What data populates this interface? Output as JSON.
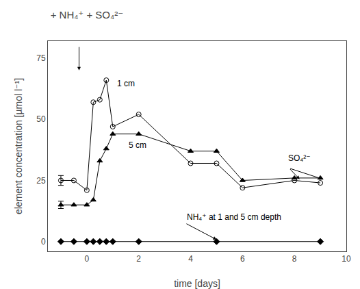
{
  "chart_data": {
    "type": "line",
    "title": "+ NH₄⁺ + SO₄²⁻",
    "xlabel": "time [days]",
    "ylabel": "element concentration [µmol l⁻¹]",
    "xlim": [
      -1.5,
      10
    ],
    "ylim": [
      -4,
      82
    ],
    "xticks": [
      0,
      2,
      4,
      6,
      8,
      10
    ],
    "yticks": [
      0,
      25,
      50,
      75
    ],
    "grid": false,
    "series": [
      {
        "x": [
          -1.0,
          -0.5,
          0.0,
          0.25,
          0.5,
          0.75,
          1.0,
          2.0,
          4.0,
          5.0,
          6.0,
          8.0,
          9.0
        ],
        "values": [
          25.0,
          25.0,
          21.0,
          57.0,
          58.0,
          66.0,
          47.0,
          52.0,
          32.0,
          32.0,
          22.0,
          25.0,
          24.0
        ],
        "errors": [
          2.0,
          0,
          0,
          0,
          0,
          0,
          0,
          0,
          0,
          0,
          0,
          0,
          0
        ],
        "color": "#000000",
        "marker": "circle-open",
        "line_style": "solid"
      },
      {
        "x": [
          -1.0,
          -0.5,
          0.0,
          0.25,
          0.5,
          0.75,
          1.0,
          2.0,
          4.0,
          5.0,
          6.0,
          8.0,
          9.0
        ],
        "values": [
          15.0,
          15.0,
          15.0,
          17.0,
          33.0,
          38.0,
          44.0,
          44.0,
          37.0,
          37.0,
          25.0,
          26.0,
          26.0
        ],
        "errors": [
          1.5,
          0,
          0,
          0,
          0,
          0,
          0,
          0,
          0,
          0,
          0,
          0,
          0
        ],
        "color": "#000000",
        "marker": "triangle-up",
        "line_style": "solid"
      },
      {
        "x": [
          -1.0,
          -0.5,
          0.0,
          0.25,
          0.5,
          0.75,
          1.0,
          2.0,
          5.0,
          9.0
        ],
        "values": [
          0,
          0,
          0,
          0,
          0,
          0,
          0,
          0,
          0,
          0
        ],
        "color": "#000000",
        "marker": "diamond",
        "line_style": "solid"
      }
    ],
    "annotations": [
      {
        "text": "1 cm",
        "x": 1.1,
        "y": 62
      },
      {
        "text": "5 cm",
        "x": 1.55,
        "y": 37
      },
      {
        "text": "SO₄²⁻",
        "x": 7.7,
        "y": 31.5
      },
      {
        "text": "NH₄⁺ at 1 and 5 cm depth",
        "x": 3.8,
        "y": 7.5
      }
    ],
    "arrows": [
      {
        "from": [
          -0.3,
          80
        ],
        "to": [
          -0.3,
          70
        ]
      },
      {
        "from": [
          7.8,
          30
        ],
        "to": [
          8.2,
          25.5
        ]
      },
      {
        "from": [
          7.8,
          30
        ],
        "to": [
          9.1,
          25.5
        ]
      },
      {
        "from": [
          3.8,
          7.5
        ],
        "to": [
          5.0,
          0.8
        ]
      }
    ]
  }
}
